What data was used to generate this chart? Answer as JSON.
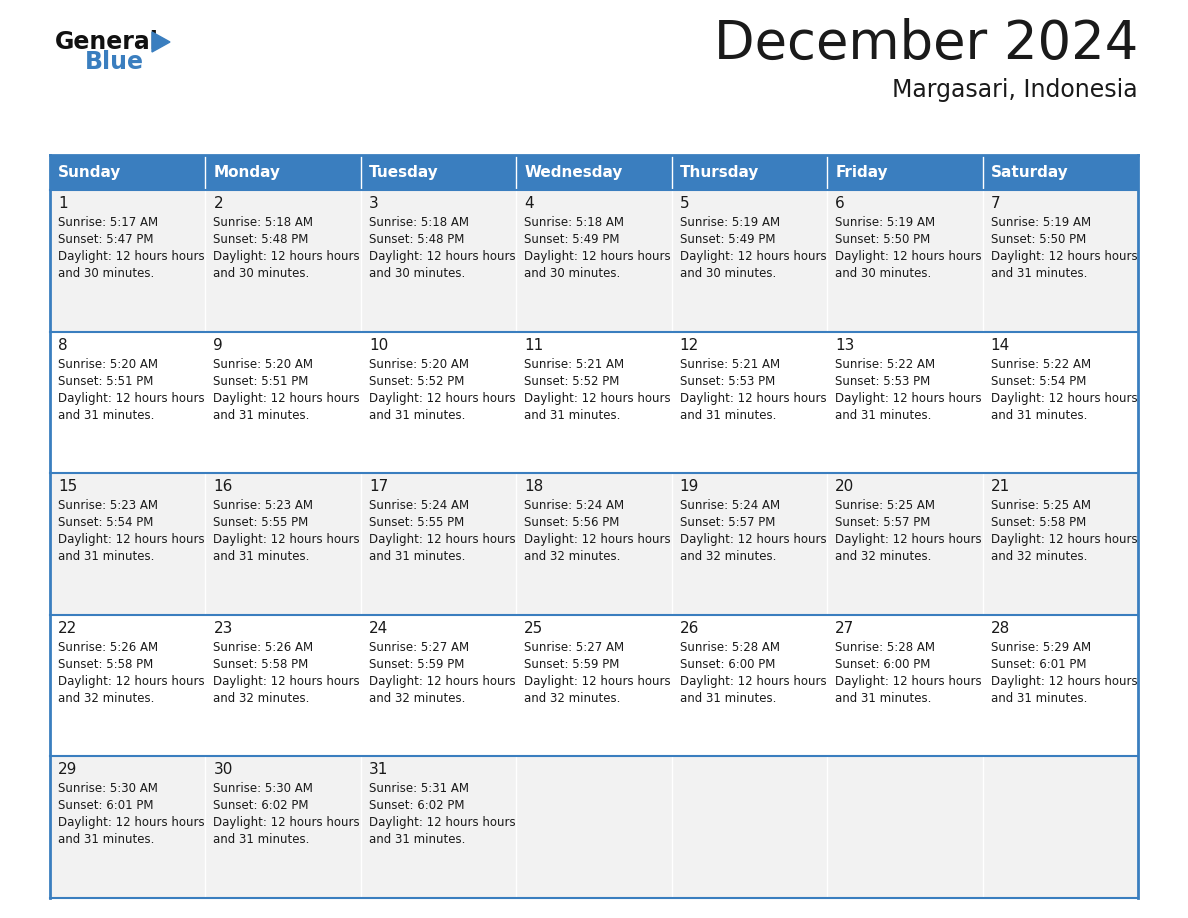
{
  "title": "December 2024",
  "subtitle": "Margasari, Indonesia",
  "header_color": "#3a7ebf",
  "header_text_color": "#ffffff",
  "row_bg_odd": "#f2f2f2",
  "row_bg_even": "#ffffff",
  "border_color": "#3a7ebf",
  "text_color": "#1a1a1a",
  "day_names": [
    "Sunday",
    "Monday",
    "Tuesday",
    "Wednesday",
    "Thursday",
    "Friday",
    "Saturday"
  ],
  "title_fontsize": 38,
  "subtitle_fontsize": 17,
  "logo_fontsize": 17,
  "header_fontsize": 11,
  "day_num_fontsize": 11,
  "cell_text_fontsize": 8.5,
  "days_data": [
    {
      "day": 1,
      "col": 0,
      "row": 0,
      "sunrise": "5:17 AM",
      "sunset": "5:47 PM",
      "daylight": "12 hours and 30 minutes."
    },
    {
      "day": 2,
      "col": 1,
      "row": 0,
      "sunrise": "5:18 AM",
      "sunset": "5:48 PM",
      "daylight": "12 hours and 30 minutes."
    },
    {
      "day": 3,
      "col": 2,
      "row": 0,
      "sunrise": "5:18 AM",
      "sunset": "5:48 PM",
      "daylight": "12 hours and 30 minutes."
    },
    {
      "day": 4,
      "col": 3,
      "row": 0,
      "sunrise": "5:18 AM",
      "sunset": "5:49 PM",
      "daylight": "12 hours and 30 minutes."
    },
    {
      "day": 5,
      "col": 4,
      "row": 0,
      "sunrise": "5:19 AM",
      "sunset": "5:49 PM",
      "daylight": "12 hours and 30 minutes."
    },
    {
      "day": 6,
      "col": 5,
      "row": 0,
      "sunrise": "5:19 AM",
      "sunset": "5:50 PM",
      "daylight": "12 hours and 30 minutes."
    },
    {
      "day": 7,
      "col": 6,
      "row": 0,
      "sunrise": "5:19 AM",
      "sunset": "5:50 PM",
      "daylight": "12 hours and 31 minutes."
    },
    {
      "day": 8,
      "col": 0,
      "row": 1,
      "sunrise": "5:20 AM",
      "sunset": "5:51 PM",
      "daylight": "12 hours and 31 minutes."
    },
    {
      "day": 9,
      "col": 1,
      "row": 1,
      "sunrise": "5:20 AM",
      "sunset": "5:51 PM",
      "daylight": "12 hours and 31 minutes."
    },
    {
      "day": 10,
      "col": 2,
      "row": 1,
      "sunrise": "5:20 AM",
      "sunset": "5:52 PM",
      "daylight": "12 hours and 31 minutes."
    },
    {
      "day": 11,
      "col": 3,
      "row": 1,
      "sunrise": "5:21 AM",
      "sunset": "5:52 PM",
      "daylight": "12 hours and 31 minutes."
    },
    {
      "day": 12,
      "col": 4,
      "row": 1,
      "sunrise": "5:21 AM",
      "sunset": "5:53 PM",
      "daylight": "12 hours and 31 minutes."
    },
    {
      "day": 13,
      "col": 5,
      "row": 1,
      "sunrise": "5:22 AM",
      "sunset": "5:53 PM",
      "daylight": "12 hours and 31 minutes."
    },
    {
      "day": 14,
      "col": 6,
      "row": 1,
      "sunrise": "5:22 AM",
      "sunset": "5:54 PM",
      "daylight": "12 hours and 31 minutes."
    },
    {
      "day": 15,
      "col": 0,
      "row": 2,
      "sunrise": "5:23 AM",
      "sunset": "5:54 PM",
      "daylight": "12 hours and 31 minutes."
    },
    {
      "day": 16,
      "col": 1,
      "row": 2,
      "sunrise": "5:23 AM",
      "sunset": "5:55 PM",
      "daylight": "12 hours and 31 minutes."
    },
    {
      "day": 17,
      "col": 2,
      "row": 2,
      "sunrise": "5:24 AM",
      "sunset": "5:55 PM",
      "daylight": "12 hours and 31 minutes."
    },
    {
      "day": 18,
      "col": 3,
      "row": 2,
      "sunrise": "5:24 AM",
      "sunset": "5:56 PM",
      "daylight": "12 hours and 32 minutes."
    },
    {
      "day": 19,
      "col": 4,
      "row": 2,
      "sunrise": "5:24 AM",
      "sunset": "5:57 PM",
      "daylight": "12 hours and 32 minutes."
    },
    {
      "day": 20,
      "col": 5,
      "row": 2,
      "sunrise": "5:25 AM",
      "sunset": "5:57 PM",
      "daylight": "12 hours and 32 minutes."
    },
    {
      "day": 21,
      "col": 6,
      "row": 2,
      "sunrise": "5:25 AM",
      "sunset": "5:58 PM",
      "daylight": "12 hours and 32 minutes."
    },
    {
      "day": 22,
      "col": 0,
      "row": 3,
      "sunrise": "5:26 AM",
      "sunset": "5:58 PM",
      "daylight": "12 hours and 32 minutes."
    },
    {
      "day": 23,
      "col": 1,
      "row": 3,
      "sunrise": "5:26 AM",
      "sunset": "5:58 PM",
      "daylight": "12 hours and 32 minutes."
    },
    {
      "day": 24,
      "col": 2,
      "row": 3,
      "sunrise": "5:27 AM",
      "sunset": "5:59 PM",
      "daylight": "12 hours and 32 minutes."
    },
    {
      "day": 25,
      "col": 3,
      "row": 3,
      "sunrise": "5:27 AM",
      "sunset": "5:59 PM",
      "daylight": "12 hours and 32 minutes."
    },
    {
      "day": 26,
      "col": 4,
      "row": 3,
      "sunrise": "5:28 AM",
      "sunset": "6:00 PM",
      "daylight": "12 hours and 31 minutes."
    },
    {
      "day": 27,
      "col": 5,
      "row": 3,
      "sunrise": "5:28 AM",
      "sunset": "6:00 PM",
      "daylight": "12 hours and 31 minutes."
    },
    {
      "day": 28,
      "col": 6,
      "row": 3,
      "sunrise": "5:29 AM",
      "sunset": "6:01 PM",
      "daylight": "12 hours and 31 minutes."
    },
    {
      "day": 29,
      "col": 0,
      "row": 4,
      "sunrise": "5:30 AM",
      "sunset": "6:01 PM",
      "daylight": "12 hours and 31 minutes."
    },
    {
      "day": 30,
      "col": 1,
      "row": 4,
      "sunrise": "5:30 AM",
      "sunset": "6:02 PM",
      "daylight": "12 hours and 31 minutes."
    },
    {
      "day": 31,
      "col": 2,
      "row": 4,
      "sunrise": "5:31 AM",
      "sunset": "6:02 PM",
      "daylight": "12 hours and 31 minutes."
    }
  ]
}
